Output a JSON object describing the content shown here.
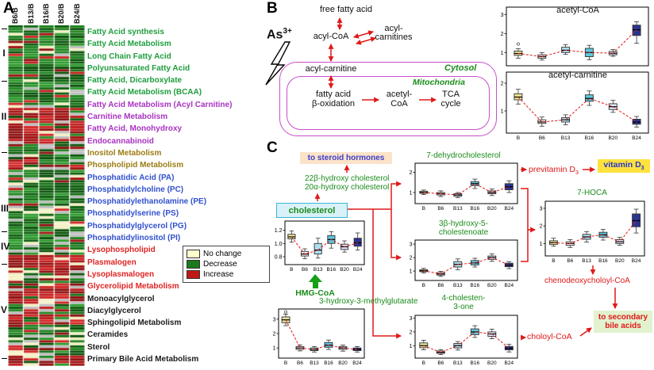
{
  "panel_labels": {
    "a": "A",
    "b": "B",
    "c": "C"
  },
  "colors": {
    "arrow_red": "#e01818",
    "flux_red": "#e01818",
    "metab_green": "#1a8c1a",
    "membrane": "#c94fc9",
    "steroid_bg": "#fbe3c9",
    "steroid_text": "#3c3ccc",
    "vitamin_bg": "#ffe23e",
    "vitamin_text": "#2436c8",
    "bile_bg": "#e2f2cf",
    "cholesterol_bg": "#d9f1f8",
    "cholesterol_border": "#36b6d8",
    "hmg_arrow_green": "#15a015"
  },
  "heatmap": {
    "columns": [
      "B6/B",
      "B13/B",
      "B16/B",
      "B20/B",
      "B24/B"
    ],
    "group_labels": [
      "I",
      "II",
      "III",
      "IV",
      "V"
    ],
    "legend": {
      "items": [
        {
          "label": "No change",
          "color": "#ffffcc"
        },
        {
          "label": "Decrease",
          "color": "#1b7a1b"
        },
        {
          "label": "Increase",
          "color": "#c21717"
        }
      ]
    },
    "cell_colors": {
      "greens": [
        "#0b5d0b",
        "#156f15",
        "#1e831e",
        "#2a992a",
        "#084f08"
      ],
      "reds": [
        "#a31010",
        "#bf1a1a",
        "#d32424",
        "#8c0d0d"
      ],
      "no_change": "#f4f0c2",
      "missing": "#bdbdbd"
    },
    "rows": [
      {
        "label": "Fatty Acid synthesis",
        "color": "#1f9e3e",
        "n": 3,
        "bias": "dec"
      },
      {
        "label": "Fatty Acid Metabolism",
        "color": "#1f9e3e",
        "n": 6,
        "bias": "dec"
      },
      {
        "label": "Long Chain Fatty Acid",
        "color": "#1f9e3e",
        "n": 8,
        "bias": "dec"
      },
      {
        "label": "Polyunsaturated Fatty Acid",
        "color": "#1f9e3e",
        "n": 6,
        "bias": "dec"
      },
      {
        "label": "Fatty Acid, Dicarboxylate",
        "color": "#1f9e3e",
        "n": 4,
        "bias": "dec"
      },
      {
        "label": "Fatty Acid Metabolism (BCAA)",
        "color": "#1f9e3e",
        "n": 5,
        "bias": "dec"
      },
      {
        "label": "Fatty Acid Metabolism (Acyl Carnitine)",
        "color": "#a833c0",
        "n": 8,
        "bias": "inc"
      },
      {
        "label": "Carnitine Metabolism",
        "color": "#a833c0",
        "n": 4,
        "bias": "inc"
      },
      {
        "label": "Fatty Acid, Monohydroxy",
        "color": "#a833c0",
        "n": 5,
        "bias": "mix"
      },
      {
        "label": "Endocannabinoid",
        "color": "#a833c0",
        "n": 3,
        "bias": "dec"
      },
      {
        "label": "Inositol Metabolism",
        "color": "#9b7c12",
        "n": 4,
        "bias": "mix"
      },
      {
        "label": "Phospholipid Metabolism",
        "color": "#9b7c12",
        "n": 6,
        "bias": "dec"
      },
      {
        "label": "Phosphatidic Acid (PA)",
        "color": "#3050cf",
        "n": 4,
        "bias": "dec"
      },
      {
        "label": "Phosphatidylcholine (PC)",
        "color": "#3050cf",
        "n": 7,
        "bias": "dec"
      },
      {
        "label": "Phosphatidylethanolamine (PE)",
        "color": "#3050cf",
        "n": 6,
        "bias": "dec"
      },
      {
        "label": "Phosphatidylserine (PS)",
        "color": "#3050cf",
        "n": 3,
        "bias": "dec"
      },
      {
        "label": "Phosphatidylglycerol (PG)",
        "color": "#3050cf",
        "n": 3,
        "bias": "dec"
      },
      {
        "label": "Phosphatidylinositol (PI)",
        "color": "#3050cf",
        "n": 4,
        "bias": "dec"
      },
      {
        "label": "Lysophospholipid",
        "color": "#e02424",
        "n": 7,
        "bias": "inc"
      },
      {
        "label": "Plasmalogen",
        "color": "#e02424",
        "n": 5,
        "bias": "mix"
      },
      {
        "label": "Lysoplasmalogen",
        "color": "#e02424",
        "n": 4,
        "bias": "inc"
      },
      {
        "label": "Glycerolipid Metabolism",
        "color": "#e02424",
        "n": 3,
        "bias": "inc"
      },
      {
        "label": "Monoacylglycerol",
        "color": "#1b1b1b",
        "n": 4,
        "bias": "mix"
      },
      {
        "label": "Diacylglycerol",
        "color": "#1b1b1b",
        "n": 4,
        "bias": "inc"
      },
      {
        "label": "Sphingolipid Metabolism",
        "color": "#1b1b1b",
        "n": 6,
        "bias": "dec"
      },
      {
        "label": "Ceramides",
        "color": "#1b1b1b",
        "n": 3,
        "bias": "mix"
      },
      {
        "label": "Sterol",
        "color": "#1b1b1b",
        "n": 3,
        "bias": "mix"
      },
      {
        "label": "Primary Bile Acid Metabolism",
        "color": "#1b1b1b",
        "n": 4,
        "bias": "inc"
      }
    ]
  },
  "pathway_b": {
    "free_fatty_acid": "free fatty acid",
    "acyl_coa": "acyl-CoA",
    "acyl_carnitines_l1": "acyl-",
    "acyl_carnitines_l2": "carnitines",
    "arsenic_base": "As",
    "arsenic_sup": "3+",
    "acyl_carnitine": "acyl-carnitine",
    "cytosol": "Cytosol",
    "mitochondria": "Mitochondria",
    "beta_oxidation_l1": "fatty acid",
    "beta_oxidation_l2": "β-oxidation",
    "acetyl_coa_l1": "acetyl-",
    "acetyl_coa_l2": "CoA",
    "tca_l1": "TCA",
    "tca_l2": "cycle"
  },
  "pathway_c": {
    "steroid_hormones": "to steroid hormones",
    "hydroxy_chol_l1": "22β-hydroxy cholesterol",
    "hydroxy_chol_l2": "20α-hydroxy cholesterol",
    "hmg_coa": "HMG-CoA",
    "previtamin_d_text": "previtamin D",
    "previtamin_d_sub": "3",
    "vitamin_d_text": "vitamin D",
    "vitamin_d_sub": "3",
    "chenodeoxycholoyl": "chenodeoxycholoyl-CoA",
    "choloyl": "choloyl-CoA",
    "secondary_bile_l1": "to secondary",
    "secondary_bile_l2": "bile acids"
  },
  "box_categories": [
    "B",
    "B6",
    "B13",
    "B16",
    "B20",
    "B24"
  ],
  "box_palette": [
    "#e8e39b",
    "#f5eef1",
    "#abe0f1",
    "#5ec7de",
    "#d9e6f8",
    "#2b3590"
  ],
  "chart_data": [
    {
      "type": "box",
      "id": "acetyl_coa",
      "label": "acetyl-CoA",
      "ylim": [
        0.3,
        3.4
      ],
      "yticks": [
        1,
        2,
        3
      ],
      "ytick_labels": [
        "1",
        "2",
        "3"
      ],
      "show_xlabels": false,
      "boxes": [
        {
          "lo": 0.7,
          "q1": 0.85,
          "med": 0.95,
          "q3": 1.08,
          "hi": 1.2,
          "out": [
            1.45
          ]
        },
        {
          "lo": 0.6,
          "q1": 0.7,
          "med": 0.78,
          "q3": 0.88,
          "hi": 1.0
        },
        {
          "lo": 0.9,
          "q1": 1.0,
          "med": 1.12,
          "q3": 1.28,
          "hi": 1.42
        },
        {
          "lo": 0.62,
          "q1": 0.78,
          "med": 1.0,
          "q3": 1.22,
          "hi": 1.38
        },
        {
          "lo": 0.8,
          "q1": 0.88,
          "med": 0.96,
          "q3": 1.06,
          "hi": 1.16
        },
        {
          "lo": 1.5,
          "q1": 1.9,
          "med": 2.2,
          "q3": 2.45,
          "hi": 2.62
        }
      ]
    },
    {
      "type": "box",
      "id": "acetyl_carnitine",
      "label": "acetyl-carnitine",
      "ylim": [
        0.2,
        2.4
      ],
      "yticks": [
        1,
        2
      ],
      "ytick_labels": [
        "1",
        "2"
      ],
      "show_xlabels": true,
      "boxes": [
        {
          "lo": 1.25,
          "q1": 1.4,
          "med": 1.5,
          "q3": 1.62,
          "hi": 1.78
        },
        {
          "lo": 0.45,
          "q1": 0.55,
          "med": 0.6,
          "q3": 0.68,
          "hi": 0.78
        },
        {
          "lo": 0.5,
          "q1": 0.6,
          "med": 0.68,
          "q3": 0.76,
          "hi": 0.86
        },
        {
          "lo": 1.2,
          "q1": 1.35,
          "med": 1.45,
          "q3": 1.58,
          "hi": 1.72
        },
        {
          "lo": 0.95,
          "q1": 1.05,
          "med": 1.15,
          "q3": 1.26,
          "hi": 1.38
        },
        {
          "lo": 0.42,
          "q1": 0.52,
          "med": 0.6,
          "q3": 0.7,
          "hi": 0.8
        }
      ]
    },
    {
      "type": "box",
      "id": "cholesterol",
      "label": "cholesterol",
      "ylim": [
        0.68,
        1.34
      ],
      "yticks": [
        0.8,
        1.0,
        1.2
      ],
      "ytick_labels": [
        "0.8",
        "1.0",
        "1.2"
      ],
      "show_xlabels": true,
      "boxes": [
        {
          "lo": 1.02,
          "q1": 1.07,
          "med": 1.1,
          "q3": 1.14,
          "hi": 1.19
        },
        {
          "lo": 0.77,
          "q1": 0.81,
          "med": 0.84,
          "q3": 0.88,
          "hi": 0.92
        },
        {
          "lo": 0.78,
          "q1": 0.84,
          "med": 0.9,
          "q3": 1.0,
          "hi": 1.08
        },
        {
          "lo": 0.93,
          "q1": 1.0,
          "med": 1.06,
          "q3": 1.12,
          "hi": 1.18
        },
        {
          "lo": 0.87,
          "q1": 0.91,
          "med": 0.95,
          "q3": 0.99,
          "hi": 1.04
        },
        {
          "lo": 0.9,
          "q1": 0.96,
          "med": 1.01,
          "q3": 1.08,
          "hi": 1.16
        }
      ]
    },
    {
      "type": "box",
      "id": "hmg_metabolite",
      "label": "3-hydroxy-3-methylglutarate",
      "ylim": [
        0.3,
        3.7
      ],
      "yticks": [
        1,
        2,
        3
      ],
      "ytick_labels": [
        "1",
        "2",
        "3"
      ],
      "show_xlabels": true,
      "boxes": [
        {
          "lo": 2.55,
          "q1": 2.75,
          "med": 2.95,
          "q3": 3.15,
          "hi": 3.35,
          "out": [
            3.5
          ]
        },
        {
          "lo": 0.8,
          "q1": 0.9,
          "med": 1.0,
          "q3": 1.1,
          "hi": 1.22
        },
        {
          "lo": 0.72,
          "q1": 0.82,
          "med": 0.9,
          "q3": 1.0,
          "hi": 1.1
        },
        {
          "lo": 0.9,
          "q1": 1.05,
          "med": 1.2,
          "q3": 1.38,
          "hi": 1.55
        },
        {
          "lo": 0.78,
          "q1": 0.9,
          "med": 1.0,
          "q3": 1.1,
          "hi": 1.2
        },
        {
          "lo": 0.72,
          "q1": 0.82,
          "med": 0.9,
          "q3": 1.0,
          "hi": 1.1
        }
      ]
    },
    {
      "type": "box",
      "id": "dehydrocholesterol_7",
      "label": "7-dehydrocholesterol",
      "ylim": [
        0.45,
        2.45
      ],
      "yticks": [
        1,
        2
      ],
      "ytick_labels": [
        "1",
        "2"
      ],
      "show_xlabels": true,
      "boxes": [
        {
          "lo": 0.9,
          "q1": 0.96,
          "med": 1.0,
          "q3": 1.06,
          "hi": 1.12
        },
        {
          "lo": 0.8,
          "q1": 0.88,
          "med": 0.94,
          "q3": 1.0,
          "hi": 1.08
        },
        {
          "lo": 0.74,
          "q1": 0.82,
          "med": 0.88,
          "q3": 0.94,
          "hi": 1.0
        },
        {
          "lo": 1.2,
          "q1": 1.34,
          "med": 1.44,
          "q3": 1.54,
          "hi": 1.66
        },
        {
          "lo": 0.85,
          "q1": 0.94,
          "med": 1.0,
          "q3": 1.08,
          "hi": 1.18
        },
        {
          "lo": 1.0,
          "q1": 1.14,
          "med": 1.28,
          "q3": 1.44,
          "hi": 1.58
        }
      ]
    },
    {
      "type": "box",
      "id": "hydroxy_5_cholestenoate_3b",
      "label_lines": [
        "3β-hydroxy-5-",
        "cholestenoate"
      ],
      "ylim": [
        0.3,
        3.3
      ],
      "yticks": [
        1,
        2,
        3
      ],
      "ytick_labels": [
        "1",
        "2",
        "3"
      ],
      "show_xlabels": true,
      "boxes": [
        {
          "lo": 0.85,
          "q1": 0.95,
          "med": 1.02,
          "q3": 1.1,
          "hi": 1.2
        },
        {
          "lo": 0.6,
          "q1": 0.7,
          "med": 0.78,
          "q3": 0.88,
          "hi": 0.98
        },
        {
          "lo": 1.1,
          "q1": 1.3,
          "med": 1.5,
          "q3": 1.7,
          "hi": 1.9
        },
        {
          "lo": 1.3,
          "q1": 1.45,
          "med": 1.6,
          "q3": 1.78,
          "hi": 1.95
        },
        {
          "lo": 1.72,
          "q1": 1.87,
          "med": 2.0,
          "q3": 2.12,
          "hi": 2.28
        },
        {
          "lo": 1.18,
          "q1": 1.32,
          "med": 1.44,
          "q3": 1.58,
          "hi": 1.7
        }
      ]
    },
    {
      "type": "box",
      "id": "hoca_7",
      "label": "7-HOCA",
      "ylim": [
        0.3,
        3.4
      ],
      "yticks": [
        1,
        2,
        3
      ],
      "ytick_labels": [
        "1",
        "2",
        "3"
      ],
      "show_xlabels": true,
      "boxes": [
        {
          "lo": 0.85,
          "q1": 0.95,
          "med": 1.05,
          "q3": 1.16,
          "hi": 1.3
        },
        {
          "lo": 0.78,
          "q1": 0.9,
          "med": 1.0,
          "q3": 1.1,
          "hi": 1.22
        },
        {
          "lo": 1.08,
          "q1": 1.24,
          "med": 1.38,
          "q3": 1.52,
          "hi": 1.68
        },
        {
          "lo": 1.2,
          "q1": 1.36,
          "med": 1.5,
          "q3": 1.64,
          "hi": 1.8
        },
        {
          "lo": 0.9,
          "q1": 1.0,
          "med": 1.1,
          "q3": 1.22,
          "hi": 1.35
        },
        {
          "lo": 1.6,
          "q1": 1.95,
          "med": 2.3,
          "q3": 2.68,
          "hi": 2.95
        }
      ]
    },
    {
      "type": "box",
      "id": "cholesten_3_one_4",
      "label_lines": [
        "4-cholesten-",
        "3-one"
      ],
      "ylim": [
        0.1,
        3.2
      ],
      "yticks": [
        1,
        2,
        3
      ],
      "ytick_labels": [
        "1",
        "2",
        "3"
      ],
      "show_xlabels": true,
      "boxes": [
        {
          "lo": 0.7,
          "q1": 0.85,
          "med": 1.0,
          "q3": 1.2,
          "hi": 1.4
        },
        {
          "lo": 0.35,
          "q1": 0.45,
          "med": 0.52,
          "q3": 0.62,
          "hi": 0.72
        },
        {
          "lo": 0.68,
          "q1": 0.84,
          "med": 1.0,
          "q3": 1.16,
          "hi": 1.3
        },
        {
          "lo": 1.6,
          "q1": 1.8,
          "med": 2.0,
          "q3": 2.22,
          "hi": 2.45
        },
        {
          "lo": 1.5,
          "q1": 1.68,
          "med": 1.85,
          "q3": 2.0,
          "hi": 2.2
        },
        {
          "lo": 0.55,
          "q1": 0.7,
          "med": 0.82,
          "q3": 0.95,
          "hi": 1.1
        }
      ]
    }
  ]
}
